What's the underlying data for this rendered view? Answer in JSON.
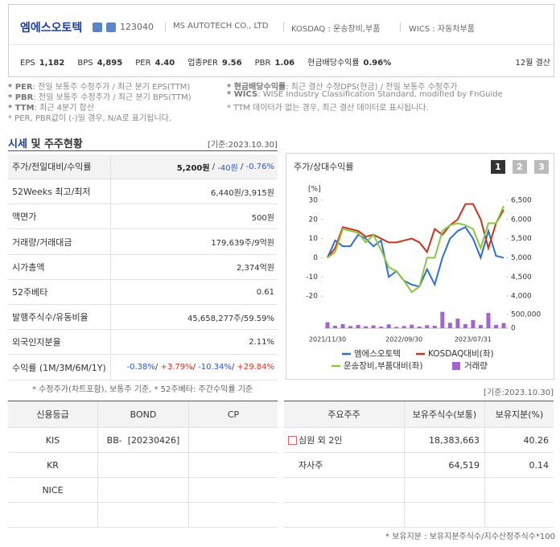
{
  "header": {
    "name": "엠에스오토텍",
    "code": "123040",
    "company_en": "MS AUTOTECH CO., LTD",
    "market": "KOSDAQ : 운송장비,부품",
    "wics": "WICS : 자동차부품",
    "metrics": [
      {
        "label": "EPS",
        "value": "1,182"
      },
      {
        "label": "BPS",
        "value": "4,895"
      },
      {
        "label": "PER",
        "value": "4.40"
      },
      {
        "label": "업종PER",
        "value": "9.56"
      },
      {
        "label": "PBR",
        "value": "1.06"
      },
      {
        "label": "현금배당수익률",
        "value": "0.96%"
      }
    ],
    "settlement": "12월 결산"
  },
  "notes": {
    "left": [
      {
        "term": "* PER",
        "text": ": 전일 보통주 수정주가 / 최근 분기 EPS(TTM)"
      },
      {
        "term": "* PBR",
        "text": ": 전일 보통주 수정주가 / 최근 분기 BPS(TTM)"
      },
      {
        "term": "* TTM",
        "text": ": 최근 4분기 합산"
      },
      {
        "term": "* PER, PBR값이 (-)일 경우, N/A로 표기됩니다."
      }
    ],
    "right": [
      {
        "term": "* 현금배당수익률",
        "text": ": 최근 결산 수정DPS(현금) / 전일 보통주 수정주가"
      },
      {
        "term": "* WICS",
        "text": ": WISE Industry Classification Standard, modified by FnGuide"
      },
      {
        "term": "* TTM 데이터가 없는 경우, 최근 결산 데이터로 표시됩니다."
      }
    ]
  },
  "market": {
    "title_highlight": "시세",
    "title_rest": "및 주주현황",
    "date": "[기준:2023.10.30]",
    "rows": [
      {
        "label": "주가/전일대비/수익률",
        "parts": [
          {
            "text": "5,200원",
            "tone": "strong"
          },
          {
            "text": " / ",
            "tone": "plain"
          },
          {
            "text": "-40원",
            "tone": "down"
          },
          {
            "text": " / ",
            "tone": "plain"
          },
          {
            "text": "-0.76%",
            "tone": "down"
          }
        ]
      },
      {
        "label": "52Weeks 최고/최저",
        "parts": [
          {
            "text": "6,440원/3,915원",
            "tone": "plain"
          }
        ]
      },
      {
        "label": "액면가",
        "parts": [
          {
            "text": "500원",
            "tone": "plain"
          }
        ]
      },
      {
        "label": "거래량/거래대금",
        "parts": [
          {
            "text": "179,639주/9억원",
            "tone": "plain"
          }
        ]
      },
      {
        "label": "시가총액",
        "parts": [
          {
            "text": "2,374억원",
            "tone": "plain"
          }
        ]
      },
      {
        "label": "52주베타",
        "parts": [
          {
            "text": "0.61",
            "tone": "plain"
          }
        ]
      },
      {
        "label": "발행주식수/유동비율",
        "parts": [
          {
            "text": "45,658,277주/59.59%",
            "tone": "plain"
          }
        ]
      },
      {
        "label": "외국인지분율",
        "parts": [
          {
            "text": "2.11%",
            "tone": "plain"
          }
        ]
      },
      {
        "label": "수익률 (1M/3M/6M/1Y)",
        "parts": [
          {
            "text": "-0.38%",
            "tone": "down"
          },
          {
            "text": "/ ",
            "tone": "plain"
          },
          {
            "text": "+3.79%",
            "tone": "up"
          },
          {
            "text": "/ ",
            "tone": "plain"
          },
          {
            "text": "-10.34%",
            "tone": "down"
          },
          {
            "text": "/ ",
            "tone": "plain"
          },
          {
            "text": "+29.84%",
            "tone": "up"
          }
        ]
      }
    ],
    "footnote": "* 수정주가(차트포함), 보통주 기준, * 52주베타: 주간수익률 기준"
  },
  "chart_data": {
    "type": "line",
    "title": "주가/상대수익률",
    "tabs": [
      "1",
      "2",
      "3"
    ],
    "ylabel": "[%]",
    "categories": [
      "2021/11/30",
      null,
      null,
      null,
      null,
      null,
      null,
      null,
      null,
      null,
      "2022/09/30",
      null,
      null,
      null,
      null,
      null,
      null,
      null,
      null,
      "2023/07/31",
      null,
      null,
      null,
      null
    ],
    "ylim": [
      -25,
      35
    ],
    "yticks": [
      -20,
      -10,
      0,
      10,
      20,
      30
    ],
    "y2lim": [
      3750,
      6750
    ],
    "y2ticks": [
      {
        "value": 4000,
        "label": "4,000"
      },
      {
        "value": 4500,
        "label": "4,500"
      },
      {
        "value": 5000,
        "label": "5,000"
      },
      {
        "value": 5500,
        "label": "5,500"
      },
      {
        "value": 6000,
        "label": "6,000"
      },
      {
        "value": 6500,
        "label": "6,500"
      }
    ],
    "y3lim": [
      0,
      650000
    ],
    "y3ticks": [
      0,
      {
        "value": 500000,
        "label": "500,000"
      }
    ],
    "series": [
      {
        "name": "엠에스오토텍",
        "color": "#2f6fd0",
        "axis": "y2",
        "values": [
          5000,
          5450,
          5300,
          5300,
          5600,
          5500,
          5300,
          5450,
          4500,
          4650,
          4400,
          4300,
          4250,
          4700,
          4300,
          5000,
          5500,
          5700,
          5800,
          5500,
          5000,
          5700,
          5050,
          5000
        ]
      },
      {
        "name": "KOSDAQ대비(좌)",
        "color": "#c8341c",
        "values": [
          0,
          5,
          16,
          15,
          14,
          11,
          12,
          10,
          8,
          8,
          9,
          10,
          8,
          3,
          15,
          12,
          17,
          20,
          28,
          28,
          20,
          5,
          18,
          25
        ]
      },
      {
        "name": "운송장비,부품대비(좌)",
        "color": "#8cc63f",
        "values": [
          0,
          3,
          15,
          14,
          13,
          8,
          12,
          4,
          -5,
          -7,
          -12,
          -18,
          -15,
          0,
          0,
          14,
          17,
          18,
          17,
          15,
          5,
          18,
          18,
          27
        ]
      },
      {
        "name": "거래량",
        "color": "#a463cf",
        "type": "bar",
        "axis": "y3",
        "values": [
          220000,
          90000,
          150000,
          80000,
          120000,
          70000,
          100000,
          60000,
          140000,
          50000,
          80000,
          130000,
          60000,
          110000,
          90000,
          600000,
          200000,
          350000,
          150000,
          300000,
          120000,
          560000,
          120000,
          190000
        ]
      }
    ]
  },
  "credit": {
    "headers": [
      "신용등급",
      "BOND",
      "CP"
    ],
    "rows": [
      {
        "agency": "KIS",
        "bond": "BB-  [20230426]"
      },
      {
        "agency": "KR"
      },
      {
        "agency": "NICE"
      }
    ]
  },
  "holders": {
    "date": "[기준:2023.10.30]",
    "headers": [
      "주요주주",
      "보유주식수(보통)",
      "보유지분(%)"
    ],
    "rows": [
      {
        "name": "심원 외 2인",
        "shares": "18,383,663",
        "ratio": "40.26"
      },
      {
        "name": "자사주",
        "shares": "64,519",
        "ratio": "0.14"
      }
    ],
    "footnote": "* 보유지분 : 보유지분주식수/지수산정주식수*100"
  }
}
